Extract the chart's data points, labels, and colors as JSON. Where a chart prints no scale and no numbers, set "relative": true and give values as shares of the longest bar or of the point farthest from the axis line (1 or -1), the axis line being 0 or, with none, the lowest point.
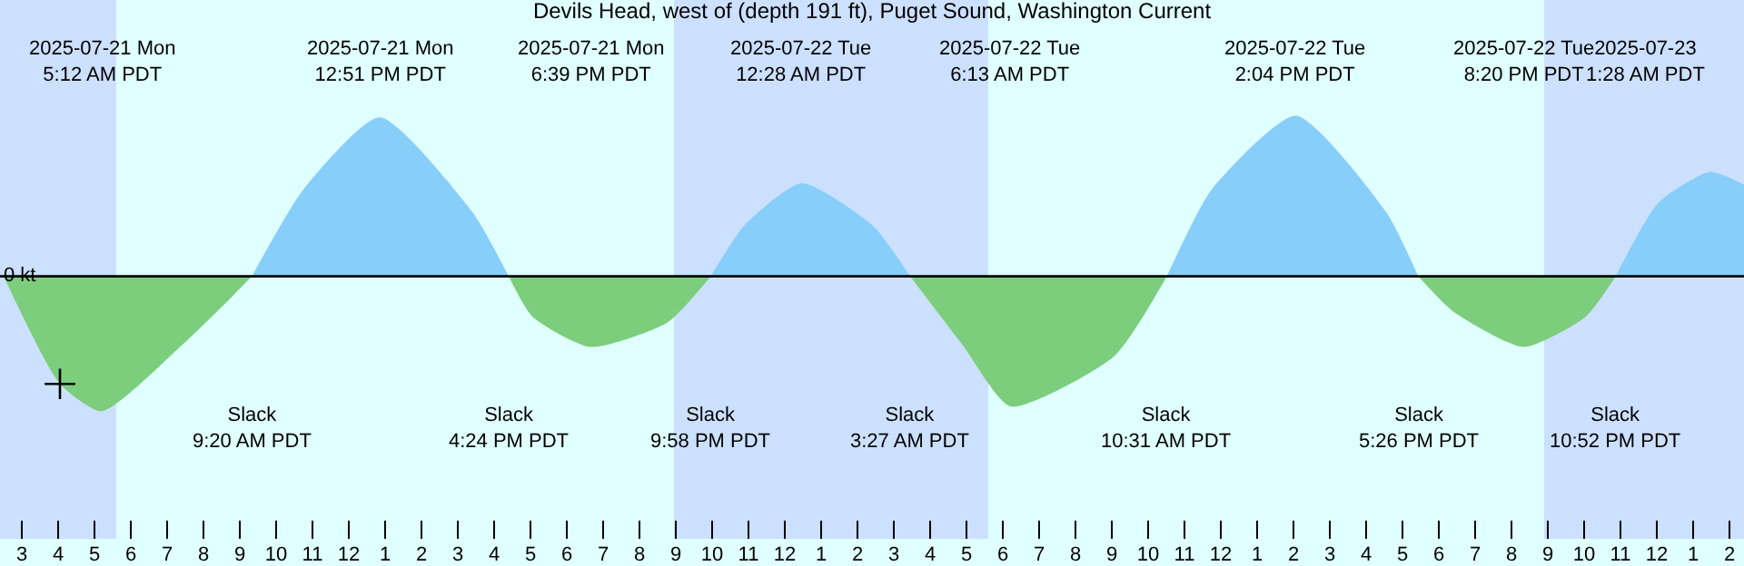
{
  "chart_data": {
    "type": "area",
    "relative": true,
    "title": "Devils Head, west of (depth 191 ft), Puget Sound, Washington Current",
    "x": [
      "2025-07-21T02:30",
      "2025-07-21T04:03",
      "2025-07-21T05:12",
      "2025-07-21T07:24",
      "2025-07-21T08:33",
      "2025-07-21T09:20",
      "2025-07-21T10:45",
      "2025-07-21T12:51",
      "2025-07-21T15:24",
      "2025-07-21T16:24",
      "2025-07-21T17:03",
      "2025-07-21T18:39",
      "2025-07-21T20:45",
      "2025-07-21T21:58",
      "2025-07-21T22:54",
      "2025-07-22T00:28",
      "2025-07-22T02:24",
      "2025-07-22T03:27",
      "2025-07-22T04:54",
      "2025-07-22T06:13",
      "2025-07-22T09:03",
      "2025-07-22T10:31",
      "2025-07-22T11:45",
      "2025-07-22T14:04",
      "2025-07-22T16:33",
      "2025-07-22T17:26",
      "2025-07-22T18:24",
      "2025-07-22T20:20",
      "2025-07-22T22:03",
      "2025-07-22T22:52",
      "2025-07-23T00:03",
      "2025-07-23T01:28",
      "2025-07-23T02:24"
    ],
    "series": [
      {
        "color": "#87cefa",
        "values": [
          null,
          null,
          null,
          null,
          null,
          0,
          0.54,
          0.99,
          0.4,
          0,
          null,
          null,
          null,
          0,
          0.32,
          0.58,
          0.32,
          0,
          null,
          null,
          null,
          0,
          0.54,
          1.0,
          0.4,
          0,
          null,
          null,
          null,
          0,
          0.46,
          0.65,
          0.57
        ]
      },
      {
        "color": "#7ccd7c",
        "values": [
          0,
          -0.67,
          -0.84,
          -0.43,
          -0.18,
          0,
          null,
          null,
          null,
          0,
          -0.25,
          -0.44,
          -0.29,
          0,
          null,
          null,
          null,
          0,
          -0.43,
          -0.81,
          -0.5,
          0,
          null,
          null,
          null,
          0,
          -0.22,
          -0.44,
          -0.25,
          0,
          null,
          null,
          null
        ]
      },
      {
        "type": "scatter",
        "color": "#000000",
        "marker": "cross",
        "x": [
          "2025-07-21T04:03"
        ],
        "values": [
          -0.67
        ]
      }
    ],
    "xlim": [
      "2025-07-21T02:24",
      "2025-07-23T02:24"
    ],
    "xticks": [
      {
        "value": "2025-07-21T03:00",
        "label": "3"
      },
      {
        "value": "2025-07-21T04:00",
        "label": "4"
      },
      {
        "value": "2025-07-21T05:00",
        "label": "5"
      },
      {
        "value": "2025-07-21T06:00",
        "label": "6"
      },
      {
        "value": "2025-07-21T07:00",
        "label": "7"
      },
      {
        "value": "2025-07-21T08:00",
        "label": "8"
      },
      {
        "value": "2025-07-21T09:00",
        "label": "9"
      },
      {
        "value": "2025-07-21T10:00",
        "label": "10"
      },
      {
        "value": "2025-07-21T11:00",
        "label": "11"
      },
      {
        "value": "2025-07-21T12:00",
        "label": "12"
      },
      {
        "value": "2025-07-21T13:00",
        "label": "1"
      },
      {
        "value": "2025-07-21T14:00",
        "label": "2"
      },
      {
        "value": "2025-07-21T15:00",
        "label": "3"
      },
      {
        "value": "2025-07-21T16:00",
        "label": "4"
      },
      {
        "value": "2025-07-21T17:00",
        "label": "5"
      },
      {
        "value": "2025-07-21T18:00",
        "label": "6"
      },
      {
        "value": "2025-07-21T19:00",
        "label": "7"
      },
      {
        "value": "2025-07-21T20:00",
        "label": "8"
      },
      {
        "value": "2025-07-21T21:00",
        "label": "9"
      },
      {
        "value": "2025-07-21T22:00",
        "label": "10"
      },
      {
        "value": "2025-07-21T23:00",
        "label": "11"
      },
      {
        "value": "2025-07-22T00:00",
        "label": "12"
      },
      {
        "value": "2025-07-22T01:00",
        "label": "1"
      },
      {
        "value": "2025-07-22T02:00",
        "label": "2"
      },
      {
        "value": "2025-07-22T03:00",
        "label": "3"
      },
      {
        "value": "2025-07-22T04:00",
        "label": "4"
      },
      {
        "value": "2025-07-22T05:00",
        "label": "5"
      },
      {
        "value": "2025-07-22T06:00",
        "label": "6"
      },
      {
        "value": "2025-07-22T07:00",
        "label": "7"
      },
      {
        "value": "2025-07-22T08:00",
        "label": "8"
      },
      {
        "value": "2025-07-22T09:00",
        "label": "9"
      },
      {
        "value": "2025-07-22T10:00",
        "label": "10"
      },
      {
        "value": "2025-07-22T11:00",
        "label": "11"
      },
      {
        "value": "2025-07-22T12:00",
        "label": "12"
      },
      {
        "value": "2025-07-22T13:00",
        "label": "1"
      },
      {
        "value": "2025-07-22T14:00",
        "label": "2"
      },
      {
        "value": "2025-07-22T15:00",
        "label": "3"
      },
      {
        "value": "2025-07-22T16:00",
        "label": "4"
      },
      {
        "value": "2025-07-22T17:00",
        "label": "5"
      },
      {
        "value": "2025-07-22T18:00",
        "label": "6"
      },
      {
        "value": "2025-07-22T19:00",
        "label": "7"
      },
      {
        "value": "2025-07-22T20:00",
        "label": "8"
      },
      {
        "value": "2025-07-22T21:00",
        "label": "9"
      },
      {
        "value": "2025-07-22T22:00",
        "label": "10"
      },
      {
        "value": "2025-07-22T23:00",
        "label": "11"
      },
      {
        "value": "2025-07-23T00:00",
        "label": "12"
      },
      {
        "value": "2025-07-23T01:00",
        "label": "1"
      },
      {
        "value": "2025-07-23T02:00",
        "label": "2"
      }
    ],
    "ref_lines": [
      {
        "axis": "y",
        "value": 0,
        "label": "0 kt",
        "color": "#000000"
      }
    ],
    "bands": [
      {
        "axis": "x",
        "from": "2025-07-21T02:24",
        "to": "2025-07-21T05:36",
        "color": "#cce0ff"
      },
      {
        "axis": "x",
        "from": "2025-07-21T20:57",
        "to": "2025-07-22T05:36",
        "color": "#cce0ff"
      },
      {
        "axis": "x",
        "from": "2025-07-22T20:54",
        "to": "2025-07-23T02:24",
        "color": "#cce0ff"
      }
    ],
    "annotations": [
      "2025-07-21 Mon\n5:12 AM PDT",
      "2025-07-21 Mon\n12:51 PM PDT",
      "2025-07-21 Mon\n6:39 PM PDT",
      "2025-07-22 Tue\n12:28 AM PDT",
      "2025-07-22 Tue\n6:13 AM PDT",
      "2025-07-22 Tue\n2:04 PM PDT",
      "2025-07-22 Tue\n8:20 PM PDT",
      "2025-07-23\n1:28 AM PDT",
      "Slack\n9:20 AM PDT",
      "Slack\n4:24 PM PDT",
      "Slack\n9:58 PM PDT",
      "Slack\n3:27 AM PDT",
      "Slack\n10:31 AM PDT",
      "Slack\n5:26 PM PDT",
      "Slack\n10:52 PM PDT"
    ]
  }
}
